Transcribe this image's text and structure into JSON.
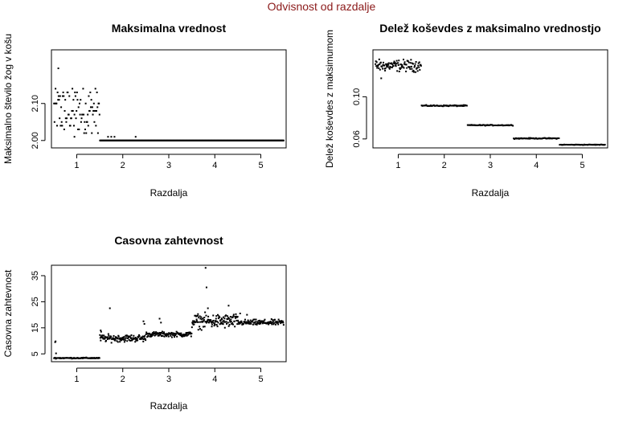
{
  "figure": {
    "title": "Odvisnost od razdalje",
    "title_color": "#8b1a1a"
  },
  "chart_data": [
    {
      "type": "scatter",
      "title": "Maksimalna vrednost",
      "xlabel": "Razdalja",
      "ylabel": "Maksimalno število žog v košu",
      "xlim": [
        0.45,
        5.55
      ],
      "ylim": [
        1.98,
        2.245
      ],
      "xticks": [
        "1",
        "2",
        "3",
        "4",
        "5"
      ],
      "yticks": [
        "2.00",
        "2.10"
      ],
      "x_tick_values": [
        1,
        2,
        3,
        4,
        5
      ],
      "y_tick_values": [
        2.0,
        2.1
      ],
      "groups": [
        {
          "x_range": [
            0.5,
            1.5
          ],
          "n": 90,
          "mode": "jitter",
          "center": 2.08,
          "spread": 0.055,
          "levels": [
            2.02,
            2.03,
            2.04,
            2.05,
            2.06,
            2.07,
            2.08,
            2.09,
            2.1,
            2.11,
            2.12,
            2.13,
            2.14
          ]
        },
        {
          "x_range": [
            1.5,
            5.5
          ],
          "n": 400,
          "mode": "flat",
          "center": 2.0,
          "spread": 0.0
        }
      ],
      "extra_points": [
        {
          "x": 0.6,
          "y": 2.195
        },
        {
          "x": 0.95,
          "y": 2.01
        },
        {
          "x": 1.68,
          "y": 2.01
        },
        {
          "x": 1.75,
          "y": 2.01
        },
        {
          "x": 1.82,
          "y": 2.01
        },
        {
          "x": 2.28,
          "y": 2.01
        }
      ]
    },
    {
      "type": "scatter",
      "title": "Delež koševdes z maksimalno vrednostjo",
      "xlabel": "Razdalja",
      "ylabel": "Delež koševdes z maksimumom",
      "xlim": [
        0.45,
        5.55
      ],
      "ylim": [
        0.0515,
        0.1445
      ],
      "xticks": [
        "1",
        "2",
        "3",
        "4",
        "5"
      ],
      "yticks": [
        "0.06",
        "0.10"
      ],
      "x_tick_values": [
        1,
        2,
        3,
        4,
        5
      ],
      "y_tick_values": [
        0.06,
        0.1
      ],
      "groups": [
        {
          "x_range": [
            0.5,
            1.5
          ],
          "n": 110,
          "mode": "jitter",
          "center": 0.1295,
          "spread": 0.004
        },
        {
          "x_range": [
            1.5,
            2.5
          ],
          "n": 60,
          "mode": "jitter",
          "center": 0.0915,
          "spread": 0.0004
        },
        {
          "x_range": [
            2.5,
            3.5
          ],
          "n": 60,
          "mode": "jitter",
          "center": 0.073,
          "spread": 0.0003
        },
        {
          "x_range": [
            3.5,
            4.5
          ],
          "n": 60,
          "mode": "jitter",
          "center": 0.0605,
          "spread": 0.0003
        },
        {
          "x_range": [
            4.5,
            5.5
          ],
          "n": 60,
          "mode": "jitter",
          "center": 0.0545,
          "spread": 0.0002
        }
      ],
      "extra_points": [
        {
          "x": 0.63,
          "y": 0.1175
        }
      ]
    },
    {
      "type": "scatter",
      "title": "Casovna zahtevnost",
      "xlabel": "Razdalja",
      "ylabel": "Casovna zahtevnost",
      "xlim": [
        0.45,
        5.55
      ],
      "ylim": [
        2.0,
        39.0
      ],
      "xticks": [
        "1",
        "2",
        "3",
        "4",
        "5"
      ],
      "yticks": [
        "5",
        "15",
        "25",
        "35"
      ],
      "x_tick_values": [
        1,
        2,
        3,
        4,
        5
      ],
      "y_tick_values": [
        5,
        15,
        25,
        35
      ],
      "groups": [
        {
          "x_range": [
            0.5,
            1.5
          ],
          "n": 80,
          "mode": "jitter",
          "center": 3.4,
          "spread": 0.15
        },
        {
          "x_range": [
            1.5,
            2.5
          ],
          "n": 120,
          "mode": "jitter",
          "center": 11.0,
          "spread": 1.0
        },
        {
          "x_range": [
            2.5,
            3.5
          ],
          "n": 110,
          "mode": "jitter",
          "center": 12.5,
          "spread": 0.7
        },
        {
          "x_range": [
            3.5,
            4.5
          ],
          "n": 130,
          "mode": "jitter",
          "center": 17.5,
          "spread": 2.0
        },
        {
          "x_range": [
            4.5,
            5.5
          ],
          "n": 110,
          "mode": "jitter",
          "center": 17.0,
          "spread": 0.8
        }
      ],
      "extra_points": [
        {
          "x": 0.53,
          "y": 9.5
        },
        {
          "x": 0.54,
          "y": 9.8
        },
        {
          "x": 0.55,
          "y": 5.2
        },
        {
          "x": 1.52,
          "y": 14.0
        },
        {
          "x": 1.53,
          "y": 13.5
        },
        {
          "x": 1.72,
          "y": 22.5
        },
        {
          "x": 2.45,
          "y": 17.5
        },
        {
          "x": 2.47,
          "y": 16.5
        },
        {
          "x": 2.8,
          "y": 18.5
        },
        {
          "x": 2.83,
          "y": 17.0
        },
        {
          "x": 3.8,
          "y": 38.0
        },
        {
          "x": 3.82,
          "y": 30.5
        },
        {
          "x": 3.85,
          "y": 22.5
        },
        {
          "x": 4.3,
          "y": 23.5
        },
        {
          "x": 4.55,
          "y": 20.5
        },
        {
          "x": 4.7,
          "y": 20.0
        }
      ]
    }
  ]
}
